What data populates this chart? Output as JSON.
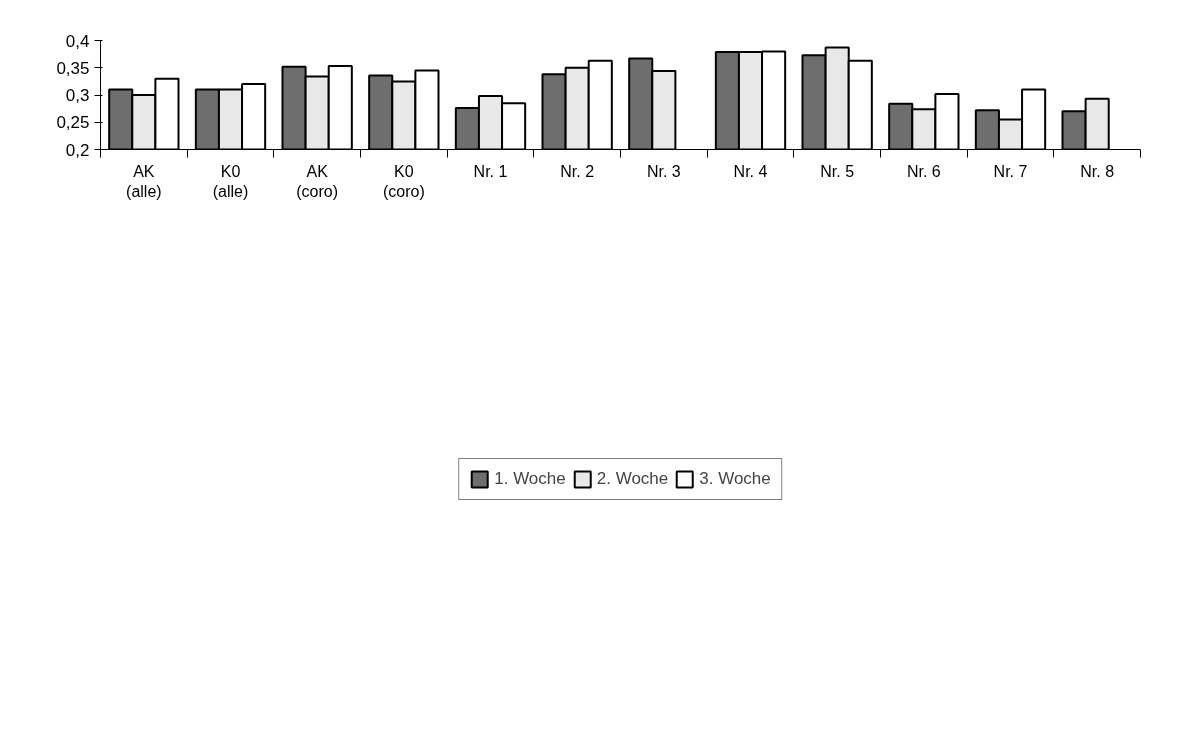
{
  "chart_data": {
    "type": "bar",
    "categories": [
      "AK\n(alle)",
      "K0\n(alle)",
      "AK\n(coro)",
      "K0\n(coro)",
      "Nr. 1",
      "Nr. 2",
      "Nr. 3",
      "Nr. 4",
      "Nr. 5",
      "Nr. 6",
      "Nr. 7",
      "Nr. 8"
    ],
    "series": [
      {
        "name": "1. Woche",
        "color": "#6e6e6e",
        "values": [
          0.31,
          0.31,
          0.352,
          0.336,
          0.276,
          0.338,
          0.367,
          0.379,
          0.373,
          0.284,
          0.272,
          0.27
        ]
      },
      {
        "name": "2. Woche",
        "color": "#e8e8e8",
        "values": [
          0.3,
          0.31,
          0.334,
          0.325,
          0.298,
          0.35,
          0.344,
          0.379,
          0.387,
          0.274,
          0.255,
          0.293
        ]
      },
      {
        "name": "3. Woche",
        "color": "#ffffff",
        "values": [
          0.33,
          0.32,
          0.353,
          0.345,
          0.285,
          0.363,
          null,
          0.38,
          0.363,
          0.302,
          0.31,
          null
        ]
      }
    ],
    "ylim": [
      0.2,
      0.4
    ],
    "yticks": [
      {
        "value": 0.2,
        "label": "0,2"
      },
      {
        "value": 0.25,
        "label": "0,25"
      },
      {
        "value": 0.3,
        "label": "0,3"
      },
      {
        "value": 0.35,
        "label": "0,35"
      },
      {
        "value": 0.4,
        "label": "0,4"
      }
    ],
    "grid": false,
    "legend": "bottom"
  }
}
